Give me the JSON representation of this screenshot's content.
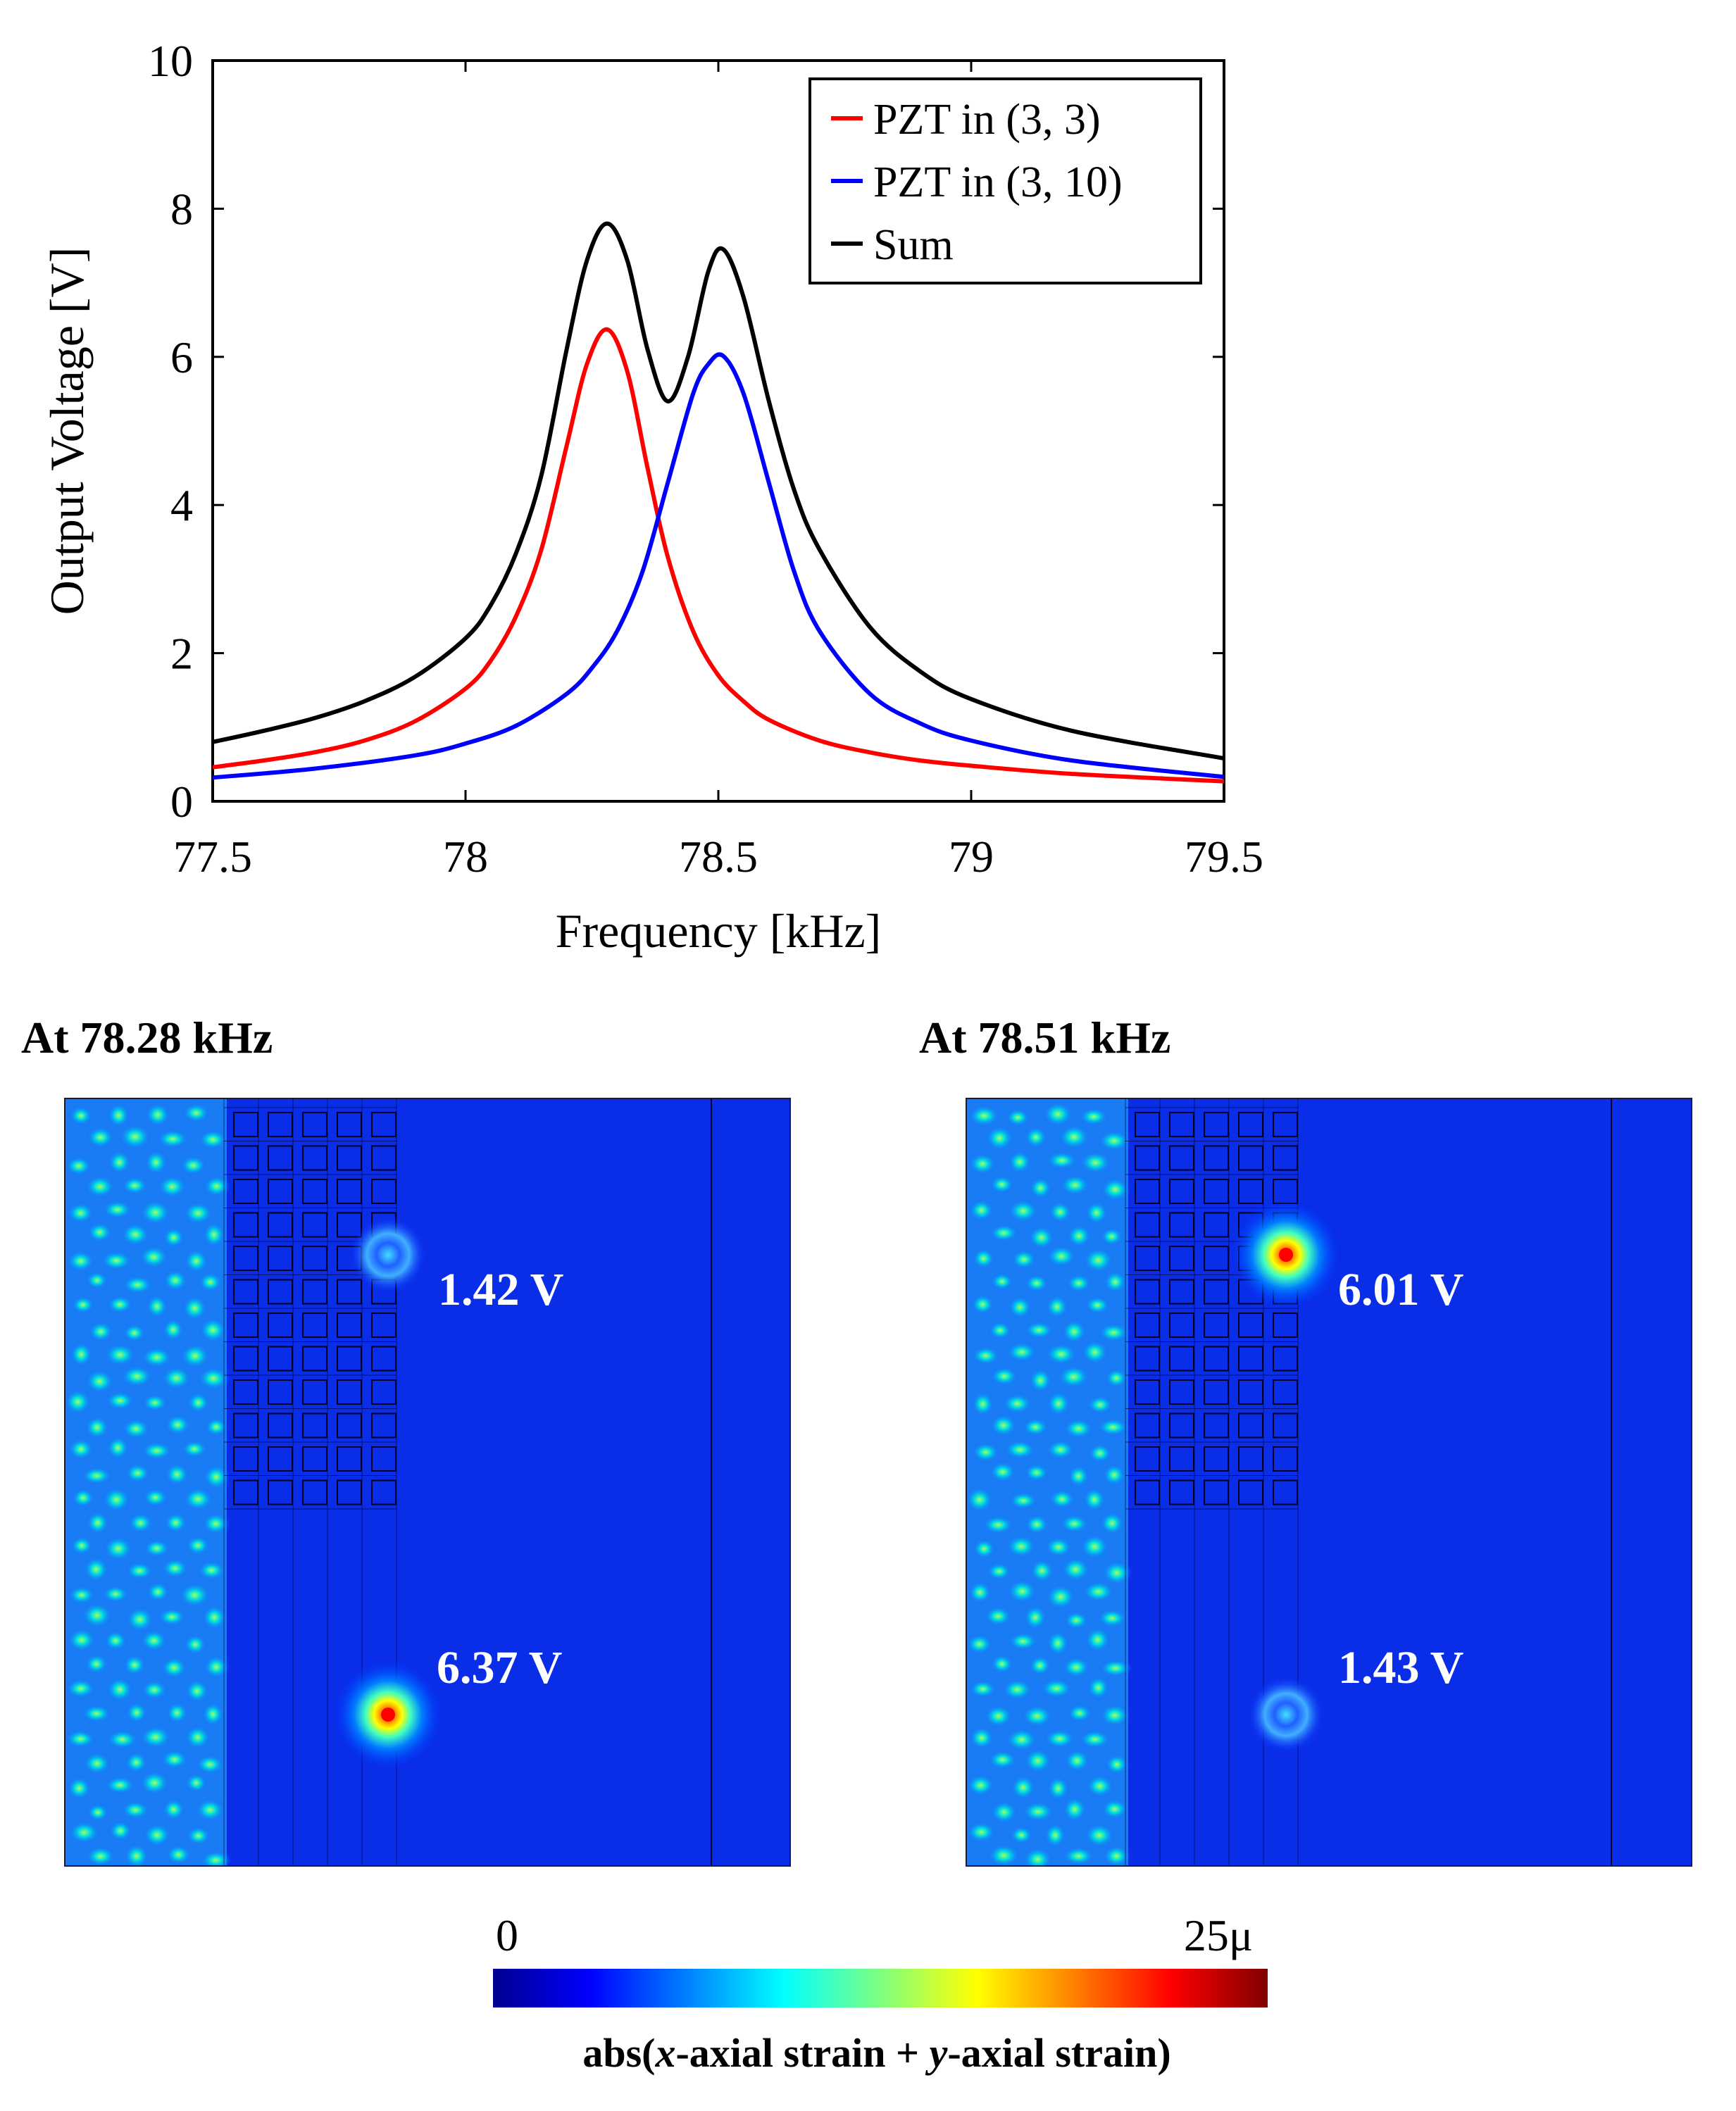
{
  "chart_data": {
    "type": "line",
    "xlabel": "Frequency [kHz]",
    "ylabel": "Output Voltage [V]",
    "xlim": [
      77.5,
      79.5
    ],
    "ylim": [
      0,
      10
    ],
    "x_ticks": [
      "77.5",
      "78",
      "78.5",
      "79",
      "79.5"
    ],
    "y_ticks": [
      "0",
      "2",
      "4",
      "6",
      "8",
      "10"
    ],
    "grid": false,
    "legend_position": "top-right",
    "series": [
      {
        "name": "PZT in (3, 3)",
        "color": "#ff0000",
        "x": [
          77.5,
          77.6,
          77.7,
          77.8,
          77.9,
          78.0,
          78.05,
          78.1,
          78.15,
          78.2,
          78.24,
          78.28,
          78.32,
          78.36,
          78.4,
          78.45,
          78.5,
          78.55,
          78.6,
          78.7,
          78.8,
          78.9,
          79.0,
          79.2,
          79.5
        ],
        "values": [
          0.46,
          0.55,
          0.66,
          0.82,
          1.08,
          1.52,
          1.9,
          2.5,
          3.4,
          4.8,
          5.9,
          6.37,
          5.8,
          4.5,
          3.3,
          2.3,
          1.7,
          1.35,
          1.1,
          0.82,
          0.66,
          0.55,
          0.48,
          0.37,
          0.27
        ]
      },
      {
        "name": "PZT in (3, 10)",
        "color": "#0000ff",
        "x": [
          77.5,
          77.7,
          77.9,
          78.0,
          78.1,
          78.2,
          78.25,
          78.3,
          78.35,
          78.4,
          78.45,
          78.48,
          78.51,
          78.55,
          78.6,
          78.65,
          78.7,
          78.8,
          78.9,
          79.0,
          79.2,
          79.5
        ],
        "values": [
          0.32,
          0.44,
          0.62,
          0.78,
          1.02,
          1.45,
          1.8,
          2.3,
          3.1,
          4.3,
          5.5,
          5.9,
          6.01,
          5.5,
          4.3,
          3.1,
          2.3,
          1.45,
          1.05,
          0.82,
          0.55,
          0.33
        ]
      },
      {
        "name": "Sum",
        "color": "#000000",
        "x": [
          77.5,
          77.6,
          77.7,
          77.8,
          77.9,
          78.0,
          78.05,
          78.1,
          78.15,
          78.2,
          78.24,
          78.28,
          78.32,
          78.36,
          78.4,
          78.44,
          78.48,
          78.51,
          78.55,
          78.6,
          78.65,
          78.7,
          78.8,
          78.9,
          79.0,
          79.2,
          79.5
        ],
        "values": [
          0.8,
          0.95,
          1.12,
          1.35,
          1.68,
          2.2,
          2.65,
          3.35,
          4.4,
          6.1,
          7.3,
          7.8,
          7.3,
          6.1,
          5.4,
          6.0,
          7.15,
          7.45,
          6.8,
          5.4,
          4.2,
          3.4,
          2.35,
          1.75,
          1.38,
          0.95,
          0.58
        ]
      }
    ],
    "maps": [
      {
        "title": "At 78.28 kHz",
        "labels": [
          {
            "text": "1.42 V"
          },
          {
            "text": "6.37 V"
          }
        ]
      },
      {
        "title": "At 78.51 kHz",
        "labels": [
          {
            "text": "6.01 V"
          },
          {
            "text": "1.43 V"
          }
        ]
      }
    ],
    "colorbar": {
      "min_label": "0",
      "max_label": "25μ",
      "label_prefix": "abs(",
      "label_x": "x",
      "label_mid": "-axial strain + ",
      "label_y": "y",
      "label_suffix": "-axial strain)",
      "colors": [
        "#00008f",
        "#0000ff",
        "#0080ff",
        "#00ffff",
        "#80ff80",
        "#ffff00",
        "#ff8000",
        "#ff0000",
        "#800000"
      ]
    }
  }
}
